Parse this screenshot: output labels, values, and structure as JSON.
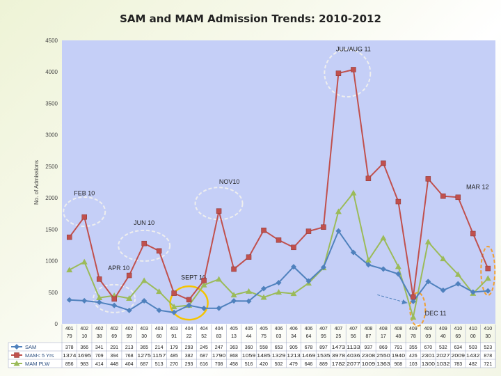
{
  "slide": {
    "title": "SAM and MAM Admission Trends: 2010-2012"
  },
  "chart_data": {
    "type": "line",
    "title": "SAM and MAM Admission Trends: 2010-2012",
    "ylabel": "No. of Admissions",
    "xlabel": "",
    "ylim": [
      0,
      4500
    ],
    "yticks": [
      0,
      500,
      1000,
      1500,
      2000,
      2500,
      3000,
      3500,
      4000,
      4500
    ],
    "grid": false,
    "data_table": true,
    "categories": [
      [
        "401",
        "79"
      ],
      [
        "402",
        "10"
      ],
      [
        "402",
        "38"
      ],
      [
        "402",
        "69"
      ],
      [
        "402",
        "99"
      ],
      [
        "403",
        "30"
      ],
      [
        "403",
        "60"
      ],
      [
        "403",
        "91"
      ],
      [
        "404",
        "22"
      ],
      [
        "404",
        "52"
      ],
      [
        "404",
        "83"
      ],
      [
        "405",
        "13"
      ],
      [
        "405",
        "44"
      ],
      [
        "405",
        "75"
      ],
      [
        "406",
        "03"
      ],
      [
        "406",
        "34"
      ],
      [
        "406",
        "64"
      ],
      [
        "407",
        "95"
      ],
      [
        "407",
        "25"
      ],
      [
        "407",
        "56"
      ],
      [
        "408",
        "87"
      ],
      [
        "408",
        "17"
      ],
      [
        "408",
        "48"
      ],
      [
        "409",
        "78"
      ],
      [
        "409",
        "09"
      ],
      [
        "409",
        "40"
      ],
      [
        "410",
        "69"
      ],
      [
        "410",
        "00"
      ],
      [
        "410",
        "30"
      ]
    ],
    "series": [
      {
        "name": "SAM",
        "color": "#4f81bd",
        "marker": "diamond",
        "values": [
          378,
          366,
          341,
          291,
          213,
          365,
          214,
          179,
          293,
          245,
          247,
          363,
          360,
          558,
          653,
          905,
          678,
          897,
          1473,
          1133,
          937,
          869,
          791,
          355,
          670,
          532,
          634,
          503,
          523
        ],
        "labels": [
          "378",
          "366",
          "341",
          "291",
          "213",
          "365",
          "214",
          "179",
          "293",
          "245",
          "247",
          "363",
          "360",
          "558",
          "653",
          "905",
          "678",
          "897",
          "1473",
          "1133",
          "937",
          "869",
          "791",
          "355",
          "670",
          "532",
          "634",
          "503",
          "523"
        ]
      },
      {
        "name": "MAM< 5 Yrs",
        "color": "#c0504d",
        "marker": "square",
        "values": [
          1374,
          1695,
          709,
          394,
          768,
          1275,
          1157,
          485,
          382,
          687,
          1790,
          868,
          1059,
          1485,
          1329,
          1213,
          1469,
          1535,
          3978,
          4036,
          2308,
          2550,
          1940,
          426,
          2301,
          2027,
          2009,
          1432,
          878
        ],
        "labels": [
          "1374",
          "1695",
          "709",
          "394",
          "768",
          "1275",
          "1157",
          "485",
          "382",
          "687",
          "1790",
          "868",
          "1059",
          "1485",
          "1329",
          "1213",
          "1469",
          "1535",
          "3978",
          "4036",
          "2308",
          "2550",
          "1940",
          "426",
          "2301",
          "2027",
          "2009",
          "1432",
          "878"
        ]
      },
      {
        "name": "MAM PLW",
        "color": "#9bbb59",
        "marker": "triangle",
        "values": [
          856,
          983,
          414,
          448,
          404,
          687,
          513,
          270,
          293,
          616,
          708,
          458,
          516,
          420,
          502,
          479,
          646,
          889,
          1782,
          2077,
          1009,
          1363,
          908,
          103,
          1300,
          1032,
          783,
          482,
          721
        ],
        "labels": [
          "856",
          "983",
          "414",
          "448",
          "404",
          "687",
          "513",
          "270",
          "293",
          "616",
          "708",
          "458",
          "516",
          "420",
          "502",
          "479",
          "646",
          "889",
          "1782",
          "2077",
          "1009",
          "1363",
          "908",
          "103",
          "1300",
          "1032",
          "783",
          "482",
          "721"
        ]
      }
    ],
    "annotations": [
      {
        "text": "FEB 10",
        "style": "dashed-ellipse"
      },
      {
        "text": "JUN 10",
        "style": "dashed-ellipse"
      },
      {
        "text": "APR 10",
        "style": "dashed-ellipse"
      },
      {
        "text": "SEPT 10",
        "style": "solid-ellipse"
      },
      {
        "text": "NOV10",
        "style": "dashed-ellipse"
      },
      {
        "text": "JUL/AUG 11",
        "style": "dashed-ellipse"
      },
      {
        "text": "DEC 11",
        "style": "dashed-ellipse"
      },
      {
        "text": "MAR 12",
        "style": "dashed-ellipse"
      }
    ],
    "colors": {
      "plot_bg": "#c5cff7",
      "annotation_dashed": "#eeeeee",
      "annotation_highlight": "#f5c400",
      "annotation_orange": "#f0a030",
      "arrow": "#4f81bd"
    }
  }
}
